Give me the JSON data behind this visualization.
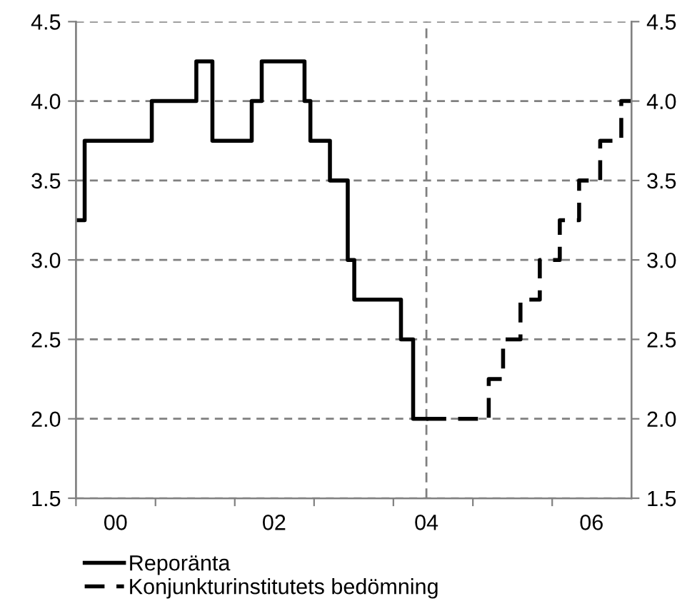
{
  "chart_data": {
    "type": "step",
    "xlim": [
      "2000-01-01",
      "2007-01-01"
    ],
    "ylim": [
      1.5,
      4.5
    ],
    "y2lim": [
      1.5,
      4.5
    ],
    "xticks": [
      {
        "value": "2000-01-01",
        "label": null
      },
      {
        "value": "2001-01-01",
        "label": null
      },
      {
        "value": "2002-01-01",
        "label": null
      },
      {
        "value": "2003-01-01",
        "label": null
      },
      {
        "value": "2004-01-01",
        "label": null
      },
      {
        "value": "2005-01-01",
        "label": null
      },
      {
        "value": "2006-01-01",
        "label": null
      },
      {
        "value": "2000-07-01",
        "label": "00"
      },
      {
        "value": "2002-07-01",
        "label": "02"
      },
      {
        "value": "2004-06-01",
        "label": "04"
      },
      {
        "value": "2006-07-01",
        "label": "06"
      }
    ],
    "yticks": [
      1.5,
      {
        "value": 2,
        "label": "2.0"
      },
      2.5,
      {
        "value": 3,
        "label": "3.0"
      },
      3.5,
      {
        "value": 4,
        "label": "4.0"
      },
      4.5
    ],
    "y2ticks": [
      1.5,
      {
        "value": 2,
        "label": "2.0"
      },
      2.5,
      {
        "value": 3,
        "label": "3.0"
      },
      3.5,
      {
        "value": 4,
        "label": "4.0"
      },
      4.5
    ],
    "grid": "y",
    "legend": "bottom",
    "ref_lines": [
      {
        "axis": "x",
        "value": "2004-06-01",
        "label": null,
        "color": "#808080",
        "line_style": "dashed"
      }
    ],
    "series": [
      {
        "name": "Reporänta",
        "color": "#000000",
        "line_style": "solid",
        "x": [
          "2000-01-01",
          "2000-02-10",
          "2000-12-15",
          "2001-07-08",
          "2001-09-20",
          "2002-03-20",
          "2002-05-05",
          "2002-11-18",
          "2002-12-15",
          "2003-03-15",
          "2003-06-05",
          "2003-07-05",
          "2004-02-05",
          "2004-04-01",
          "2004-06-01"
        ],
        "values": [
          3.25,
          3.75,
          4.0,
          4.25,
          3.75,
          4.0,
          4.25,
          4.0,
          3.75,
          3.5,
          3.0,
          2.75,
          2.5,
          2.0,
          2.0
        ]
      },
      {
        "name": "Konjunkturinstitutets bedömning",
        "color": "#000000",
        "line_style": "dashed",
        "x": [
          "2004-06-01",
          "2005-03-15",
          "2005-05-20",
          "2005-08-08",
          "2005-11-05",
          "2006-02-05",
          "2006-05-05",
          "2006-08-10",
          "2006-11-15",
          "2007-01-01"
        ],
        "values": [
          2.0,
          2.25,
          2.5,
          2.75,
          3.0,
          3.25,
          3.5,
          3.75,
          4.0,
          4.0
        ]
      }
    ]
  }
}
